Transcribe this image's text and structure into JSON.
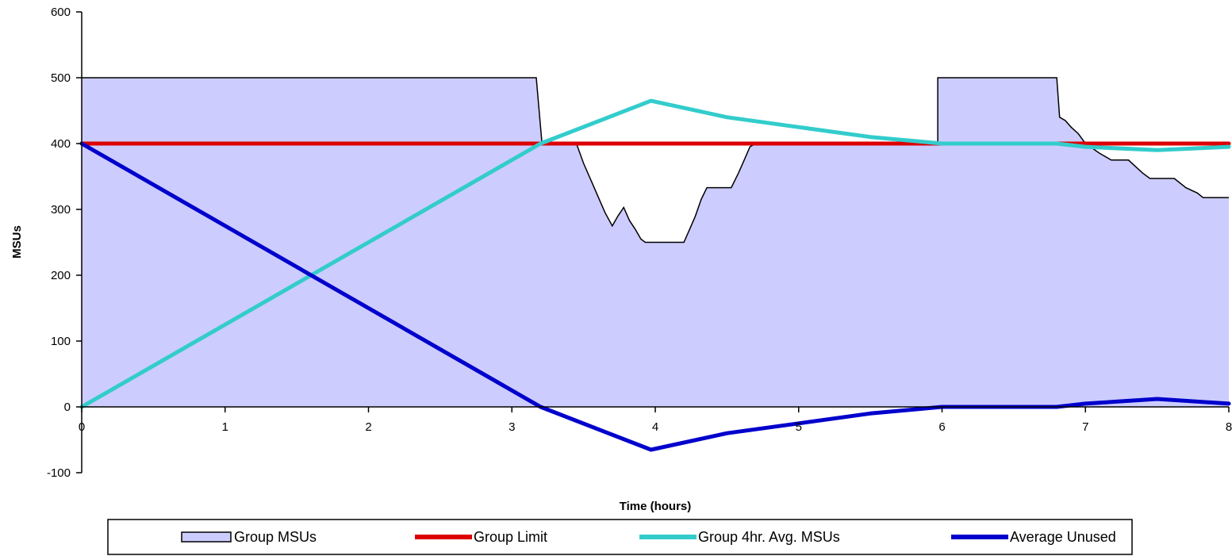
{
  "chart_data": {
    "type": "line",
    "title": "",
    "xlabel": "Time (hours)",
    "ylabel": "MSUs",
    "xlim": [
      0,
      8
    ],
    "ylim": [
      -100,
      600
    ],
    "xticks": [
      "0",
      "1",
      "2",
      "3",
      "4",
      "5",
      "6",
      "7",
      "8"
    ],
    "yticks": [
      "-100",
      "0",
      "100",
      "200",
      "300",
      "400",
      "500",
      "600"
    ],
    "grid": false,
    "legend_position": "bottom",
    "series": [
      {
        "name": "Group MSUs",
        "kind": "area",
        "color": "#ccccff",
        "stroke": "#000000",
        "points": [
          [
            0,
            500
          ],
          [
            3.17,
            500
          ],
          [
            3.21,
            400
          ],
          [
            3.45,
            400
          ],
          [
            3.5,
            370
          ],
          [
            3.55,
            345
          ],
          [
            3.6,
            320
          ],
          [
            3.65,
            295
          ],
          [
            3.7,
            275
          ],
          [
            3.74,
            290
          ],
          [
            3.78,
            303
          ],
          [
            3.82,
            283
          ],
          [
            3.86,
            270
          ],
          [
            3.9,
            255
          ],
          [
            3.93,
            250
          ],
          [
            4.2,
            250
          ],
          [
            4.24,
            270
          ],
          [
            4.28,
            290
          ],
          [
            4.32,
            315
          ],
          [
            4.36,
            333
          ],
          [
            4.53,
            333
          ],
          [
            4.58,
            355
          ],
          [
            4.62,
            375
          ],
          [
            4.66,
            395
          ],
          [
            4.7,
            400
          ],
          [
            5.97,
            400
          ],
          [
            5.97,
            500
          ],
          [
            6.8,
            500
          ],
          [
            6.82,
            440
          ],
          [
            6.86,
            435
          ],
          [
            6.9,
            425
          ],
          [
            6.95,
            415
          ],
          [
            7.0,
            400
          ],
          [
            7.1,
            385
          ],
          [
            7.18,
            375
          ],
          [
            7.3,
            375
          ],
          [
            7.35,
            365
          ],
          [
            7.4,
            355
          ],
          [
            7.45,
            347
          ],
          [
            7.62,
            347
          ],
          [
            7.7,
            333
          ],
          [
            7.78,
            325
          ],
          [
            7.82,
            318
          ],
          [
            8.0,
            318
          ]
        ]
      },
      {
        "name": "Group Limit",
        "kind": "line",
        "color": "#dd0000",
        "points": [
          [
            0,
            400
          ],
          [
            8,
            400
          ]
        ]
      },
      {
        "name": "Group 4hr. Avg. MSUs",
        "kind": "line",
        "color": "#33cccc",
        "points": [
          [
            0,
            0
          ],
          [
            3.2,
            400
          ],
          [
            3.97,
            465
          ],
          [
            4.5,
            440
          ],
          [
            5.0,
            425
          ],
          [
            5.5,
            410
          ],
          [
            6.0,
            400
          ],
          [
            6.8,
            400
          ],
          [
            7.0,
            395
          ],
          [
            7.5,
            390
          ],
          [
            8.0,
            395
          ]
        ]
      },
      {
        "name": "Average Unused",
        "kind": "line",
        "color": "#0000cc",
        "points": [
          [
            0,
            400
          ],
          [
            3.2,
            0
          ],
          [
            3.97,
            -65
          ],
          [
            4.5,
            -40
          ],
          [
            5.0,
            -25
          ],
          [
            5.5,
            -10
          ],
          [
            6.0,
            0
          ],
          [
            6.8,
            0
          ],
          [
            7.0,
            5
          ],
          [
            7.5,
            12
          ],
          [
            8.0,
            5
          ]
        ]
      }
    ]
  }
}
